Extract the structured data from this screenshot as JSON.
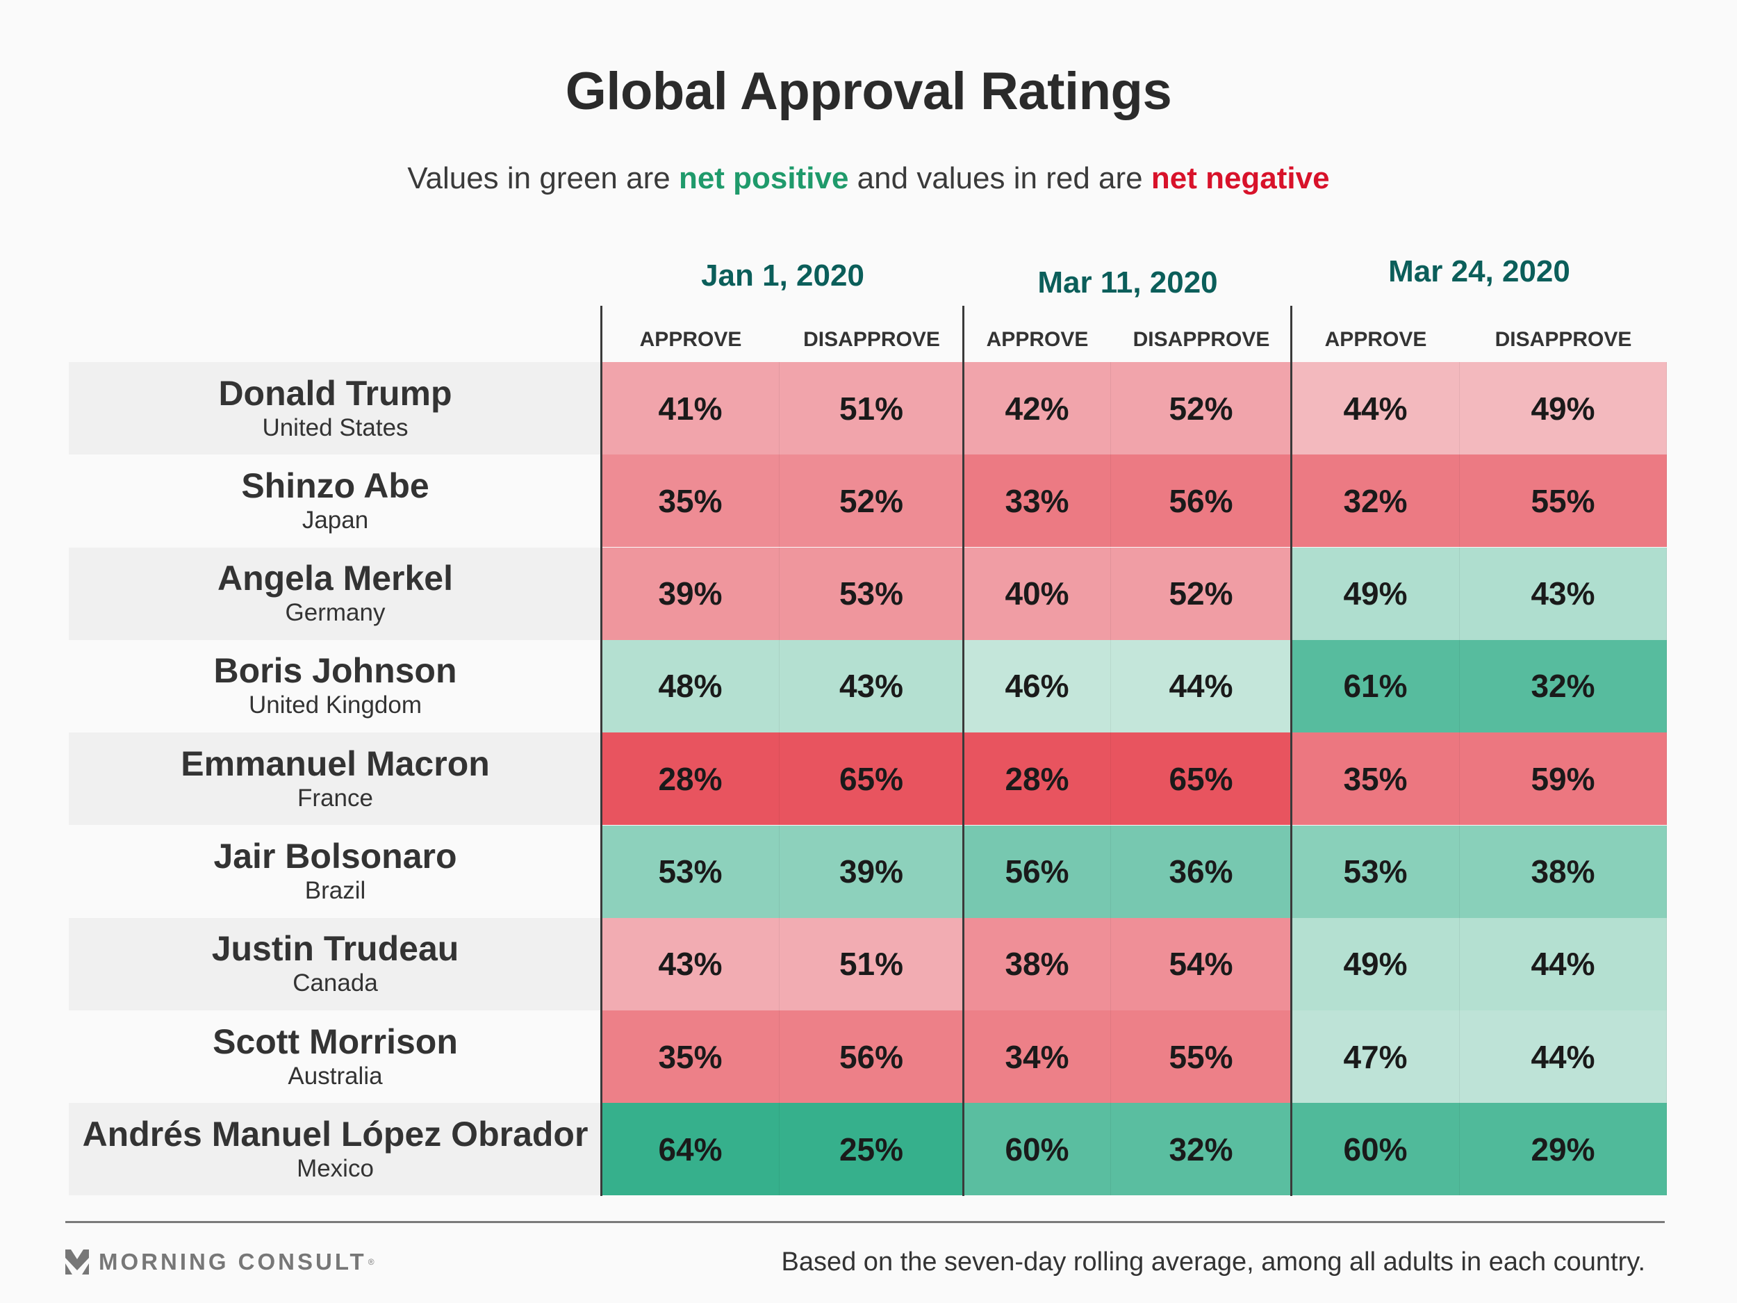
{
  "title": "Global Approval Ratings",
  "subtitle": {
    "prefix": "Values in green are ",
    "positive": "net positive",
    "middle": " and values in red are ",
    "negative": "net negative"
  },
  "colors": {
    "positive_text": "#1f9a6b",
    "negative_text": "#d8122a",
    "date_header": "#0b5e5a"
  },
  "footer": {
    "brand": "MORNING CONSULT",
    "registered": "®",
    "note": "Based on the seven-day rolling average, among all adults in each country."
  },
  "chart_data": {
    "type": "table",
    "title": "Global Approval Ratings",
    "subtitle": "Values in green are net positive and values in red are net negative",
    "dates": [
      "Jan 1, 2020",
      "Mar 11, 2020",
      "Mar 24, 2020"
    ],
    "metrics": [
      "APPROVE",
      "DISAPPROVE"
    ],
    "rows": [
      {
        "leader": "Donald Trump",
        "country": "United States",
        "values": [
          [
            41,
            51
          ],
          [
            42,
            52
          ],
          [
            44,
            49
          ]
        ]
      },
      {
        "leader": "Shinzo Abe",
        "country": "Japan",
        "values": [
          [
            35,
            52
          ],
          [
            33,
            56
          ],
          [
            32,
            55
          ]
        ]
      },
      {
        "leader": "Angela Merkel",
        "country": "Germany",
        "values": [
          [
            39,
            53
          ],
          [
            40,
            52
          ],
          [
            49,
            43
          ]
        ]
      },
      {
        "leader": "Boris Johnson",
        "country": "United Kingdom",
        "values": [
          [
            48,
            43
          ],
          [
            46,
            44
          ],
          [
            61,
            32
          ]
        ]
      },
      {
        "leader": "Emmanuel Macron",
        "country": "France",
        "values": [
          [
            28,
            65
          ],
          [
            28,
            65
          ],
          [
            35,
            59
          ]
        ]
      },
      {
        "leader": "Jair Bolsonaro",
        "country": "Brazil",
        "values": [
          [
            53,
            39
          ],
          [
            56,
            36
          ],
          [
            53,
            38
          ]
        ]
      },
      {
        "leader": "Justin Trudeau",
        "country": "Canada",
        "values": [
          [
            43,
            51
          ],
          [
            38,
            54
          ],
          [
            49,
            44
          ]
        ]
      },
      {
        "leader": "Scott Morrison",
        "country": "Australia",
        "values": [
          [
            35,
            56
          ],
          [
            34,
            55
          ],
          [
            47,
            44
          ]
        ]
      },
      {
        "leader": "Andrés Manuel López Obrador",
        "country": "Mexico",
        "values": [
          [
            64,
            25
          ],
          [
            60,
            32
          ],
          [
            60,
            29
          ]
        ]
      }
    ],
    "unit": "%"
  }
}
